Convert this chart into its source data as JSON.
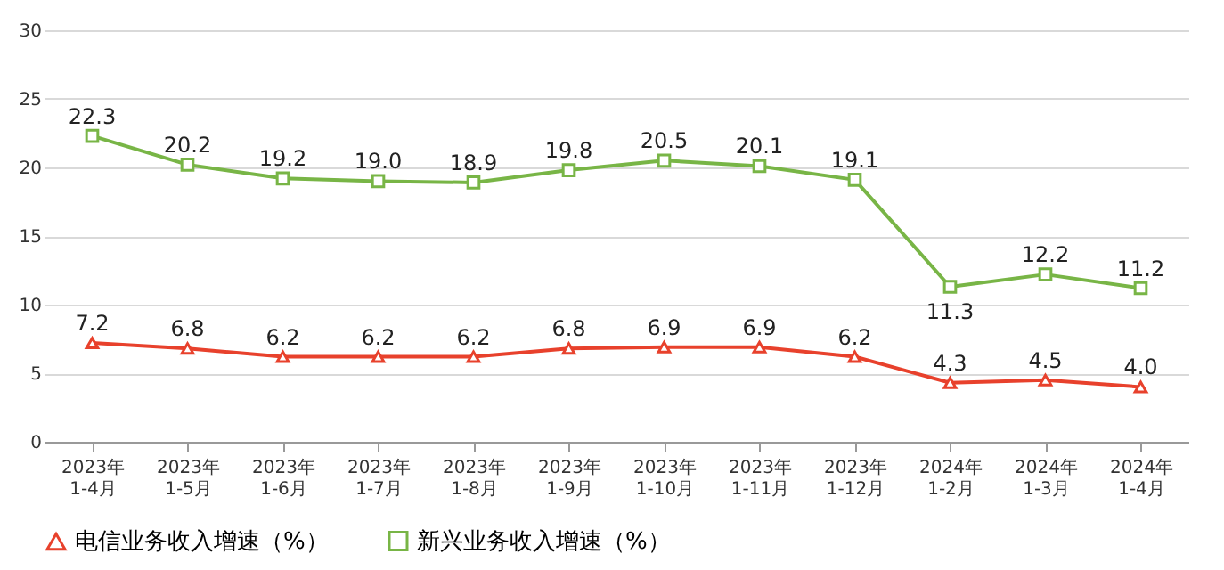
{
  "chart_data": {
    "type": "line",
    "categories": [
      "2023年\n1-4月",
      "2023年\n1-5月",
      "2023年\n1-6月",
      "2023年\n1-7月",
      "2023年\n1-8月",
      "2023年\n1-9月",
      "2023年\n1-10月",
      "2023年\n1-11月",
      "2023年\n1-12月",
      "2024年\n1-2月",
      "2024年\n1-3月",
      "2024年\n1-4月"
    ],
    "series": [
      {
        "name": "电信业务收入增速（%）",
        "color": "#e8412c",
        "marker": "triangle",
        "values": [
          7.2,
          6.8,
          6.2,
          6.2,
          6.2,
          6.8,
          6.9,
          6.9,
          6.2,
          4.3,
          4.5,
          4.0
        ],
        "value_labels": [
          "7.2",
          "6.8",
          "6.2",
          "6.2",
          "6.2",
          "6.8",
          "6.9",
          "6.9",
          "6.2",
          "4.3",
          "4.5",
          "4.0"
        ]
      },
      {
        "name": "新兴业务收入增速（%）",
        "color": "#78b546",
        "marker": "square",
        "values": [
          22.3,
          20.2,
          19.2,
          19.0,
          18.9,
          19.8,
          20.5,
          20.1,
          19.1,
          11.3,
          12.2,
          11.2
        ],
        "value_labels": [
          "22.3",
          "20.2",
          "19.2",
          "19.0",
          "18.9",
          "19.8",
          "20.5",
          "20.1",
          "19.1",
          "11.3",
          "12.2",
          "11.2"
        ]
      }
    ],
    "ylim": [
      0,
      30
    ],
    "yticks": [
      0,
      5,
      10,
      15,
      20,
      25,
      30
    ],
    "grid": "y",
    "legend": "bottom",
    "line_style": "solid"
  }
}
